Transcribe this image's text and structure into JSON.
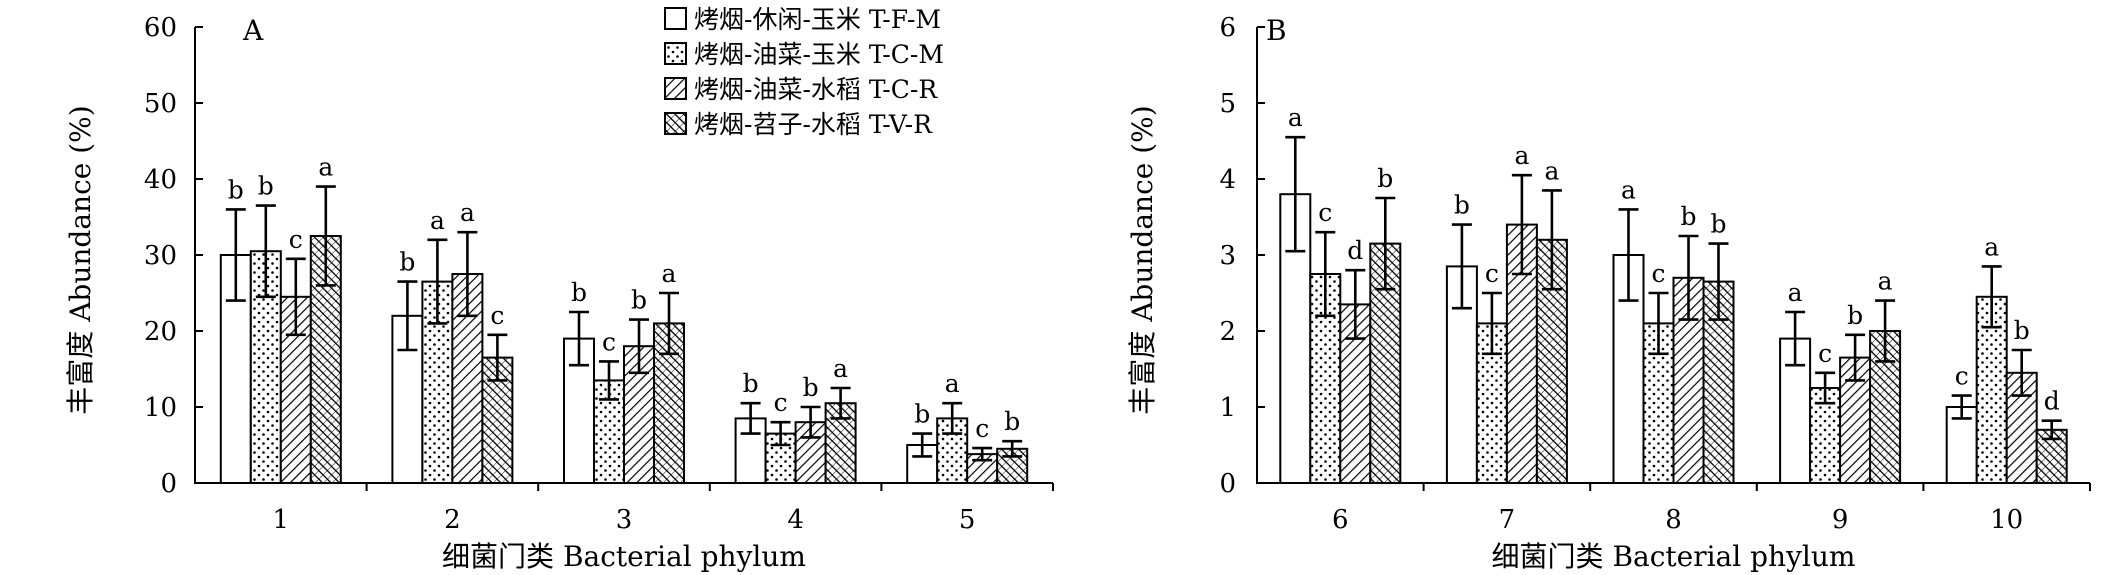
{
  "chart_data": [
    {
      "type": "bar",
      "panel_label": "A",
      "xlabel": "细菌门类 Bacterial phylum",
      "ylabel": "丰富度 Abundance (%)",
      "ylim": [
        0,
        60
      ],
      "yticks": [
        0,
        10,
        20,
        30,
        40,
        50,
        60
      ],
      "categories": [
        "1",
        "2",
        "3",
        "4",
        "5"
      ],
      "series": [
        {
          "name": "烤烟-休闲-玉米 T-F-M",
          "values": [
            30,
            22,
            19,
            8.5,
            5
          ],
          "errors": [
            6,
            4.5,
            3.5,
            2,
            1.5
          ],
          "letters": [
            "b",
            "b",
            "b",
            "b",
            "b"
          ]
        },
        {
          "name": "烤烟-油菜-玉米 T-C-M",
          "values": [
            30.5,
            26.5,
            13.5,
            6.5,
            8.5
          ],
          "errors": [
            6,
            5.5,
            2.5,
            1.5,
            2
          ],
          "letters": [
            "b",
            "a",
            "c",
            "c",
            "a"
          ]
        },
        {
          "name": "烤烟-油菜-水稻 T-C-R",
          "values": [
            24.5,
            27.5,
            18,
            8,
            3.8
          ],
          "errors": [
            5,
            5.5,
            3.5,
            2,
            0.8
          ],
          "letters": [
            "c",
            "a",
            "b",
            "b",
            "c"
          ]
        },
        {
          "name": "烤烟-苕子-水稻 T-V-R",
          "values": [
            32.5,
            16.5,
            21,
            10.5,
            4.5
          ],
          "errors": [
            6.5,
            3,
            4,
            2,
            1
          ],
          "letters": [
            "a",
            "c",
            "a",
            "a",
            "b"
          ]
        }
      ]
    },
    {
      "type": "bar",
      "panel_label": "B",
      "xlabel": "细菌门类 Bacterial phylum",
      "ylabel": "丰富度 Abundance (%)",
      "ylim": [
        0,
        6
      ],
      "yticks": [
        0,
        1,
        2,
        3,
        4,
        5,
        6
      ],
      "categories": [
        "6",
        "7",
        "8",
        "9",
        "10"
      ],
      "series": [
        {
          "name": "烤烟-休闲-玉米 T-F-M",
          "values": [
            3.8,
            2.85,
            3,
            1.9,
            1
          ],
          "errors": [
            0.75,
            0.55,
            0.6,
            0.35,
            0.15
          ],
          "letters": [
            "a",
            "b",
            "a",
            "a",
            "c"
          ]
        },
        {
          "name": "烤烟-油菜-玉米 T-C-M",
          "values": [
            2.75,
            2.1,
            2.1,
            1.25,
            2.45
          ],
          "errors": [
            0.55,
            0.4,
            0.4,
            0.2,
            0.4
          ],
          "letters": [
            "c",
            "c",
            "c",
            "c",
            "a"
          ]
        },
        {
          "name": "烤烟-油菜-水稻 T-C-R",
          "values": [
            2.35,
            3.4,
            2.7,
            1.65,
            1.45
          ],
          "errors": [
            0.45,
            0.65,
            0.55,
            0.3,
            0.3
          ],
          "letters": [
            "d",
            "a",
            "b",
            "b",
            "b"
          ]
        },
        {
          "name": "烤烟-苕子-水稻 T-V-R",
          "values": [
            3.15,
            3.2,
            2.65,
            2,
            0.7
          ],
          "errors": [
            0.6,
            0.65,
            0.5,
            0.4,
            0.12
          ],
          "letters": [
            "b",
            "a",
            "b",
            "a",
            "d"
          ]
        }
      ]
    }
  ],
  "legend": {
    "items": [
      "烤烟-休闲-玉米 T-F-M",
      "烤烟-油菜-玉米 T-C-M",
      "烤烟-油菜-水稻 T-C-R",
      "烤烟-苕子-水稻 T-V-R"
    ],
    "placement": "top-right of panel A"
  },
  "patterns": [
    "white-fill",
    "dots",
    "diagonal-hatch",
    "dense-cross-hatch"
  ]
}
